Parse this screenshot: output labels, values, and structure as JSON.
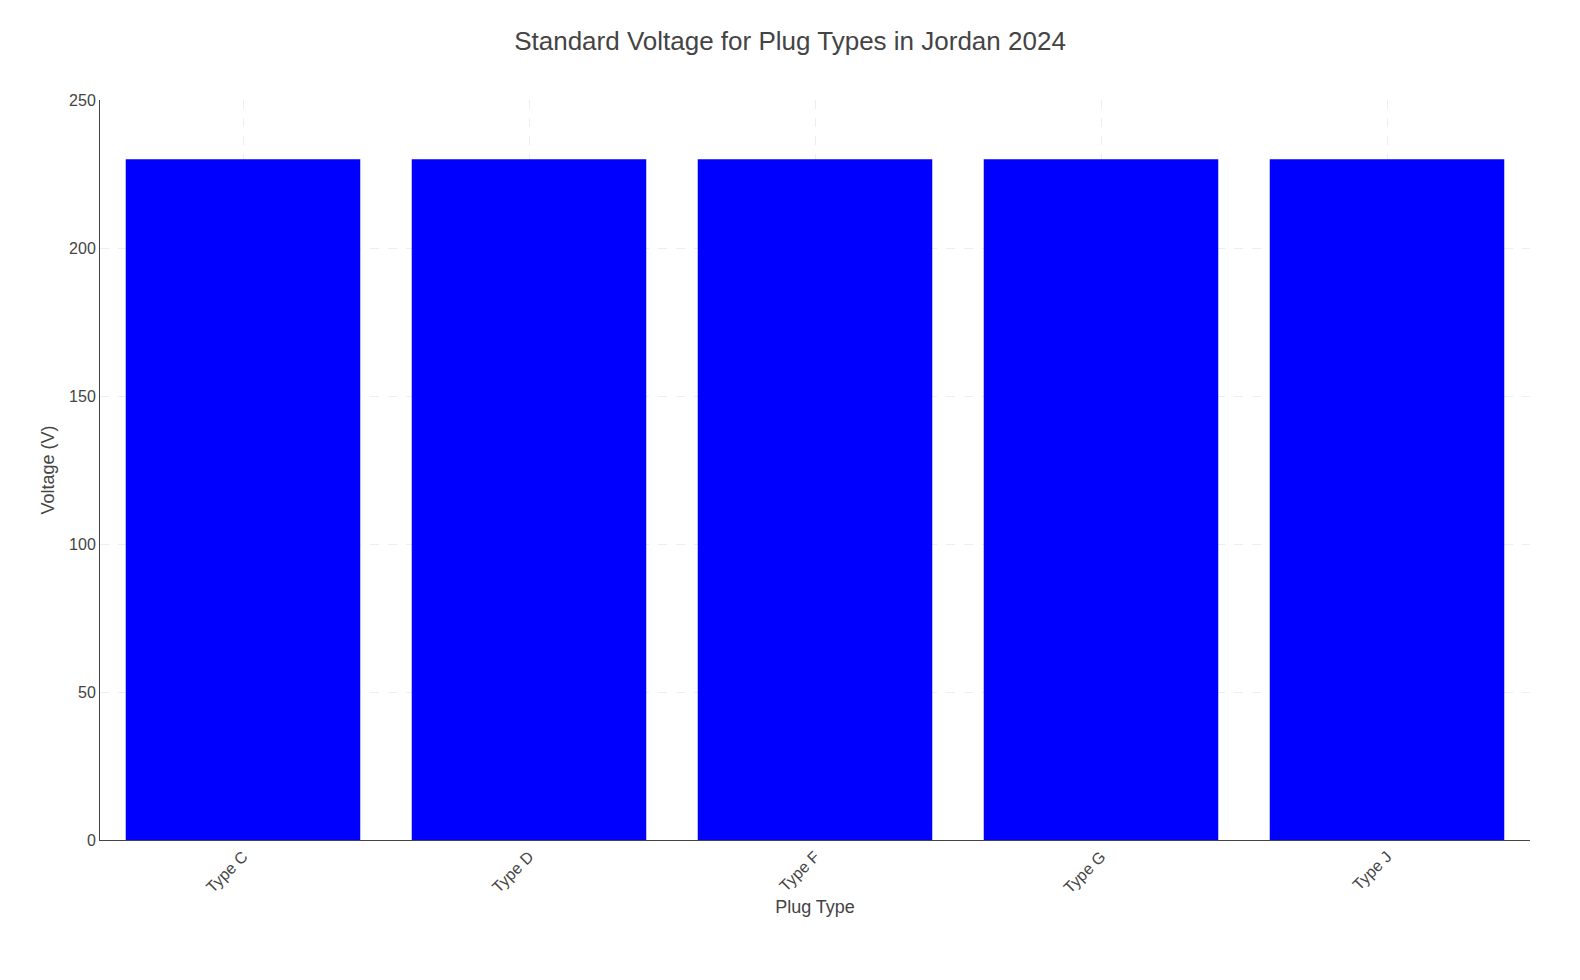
{
  "chart_data": {
    "type": "bar",
    "title": "Standard Voltage for Plug Types in Jordan 2024",
    "xlabel": "Plug Type",
    "ylabel": "Voltage (V)",
    "categories": [
      "Type C",
      "Type D",
      "Type F",
      "Type G",
      "Type J"
    ],
    "values": [
      230,
      230,
      230,
      230,
      230
    ],
    "color": "#0000FF",
    "ylim": [
      0,
      250
    ],
    "yticks": [
      0,
      50,
      100,
      150,
      200,
      250
    ],
    "grid": true
  }
}
